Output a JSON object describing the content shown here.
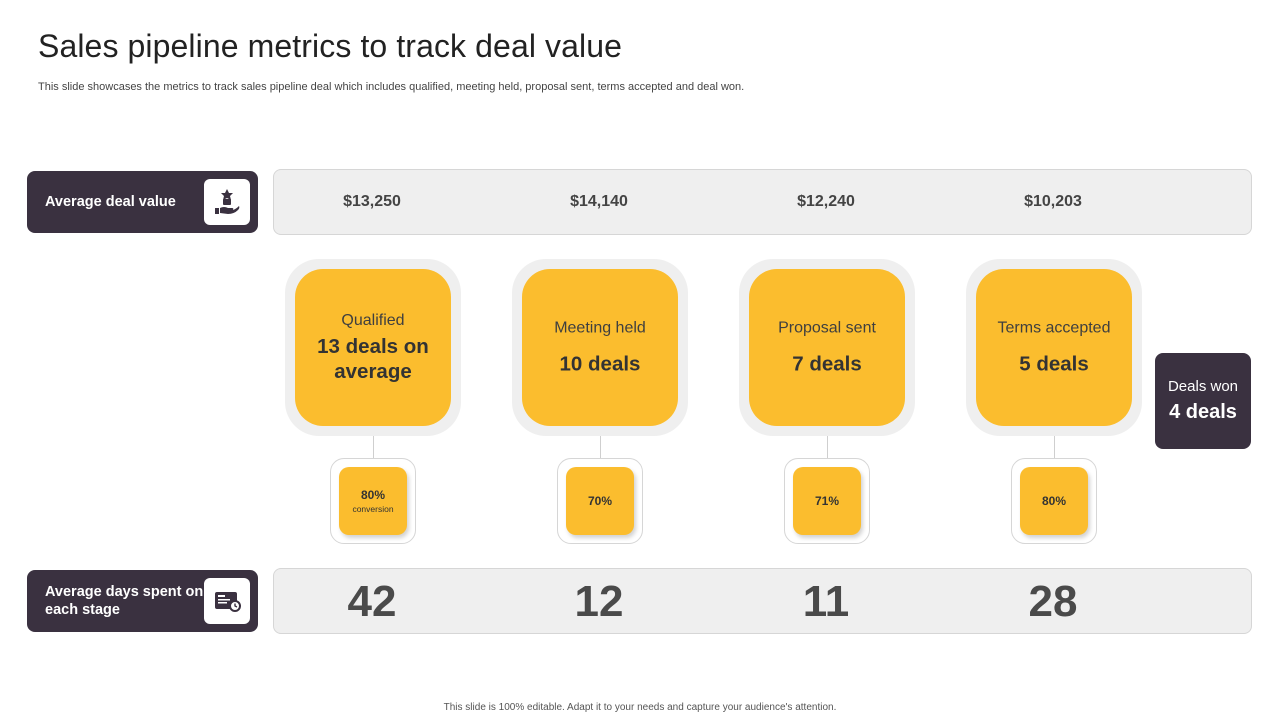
{
  "header": {
    "title": "Sales pipeline metrics to track deal value",
    "subtitle": "This slide showcases the metrics to track sales pipeline deal which includes qualified, meeting held, proposal sent, terms accepted and deal won."
  },
  "deal_value_row": {
    "label": "Average deal value",
    "icon": "money-hand-icon",
    "values": [
      "$13,250",
      "$14,140",
      "$12,240",
      "$10,203"
    ]
  },
  "stages": [
    {
      "name": "Qualified",
      "deals": "13 deals on average",
      "conversion": "80%",
      "conversion_note": "conversion"
    },
    {
      "name": "Meeting held",
      "deals": "10 deals",
      "conversion": "70%",
      "conversion_note": ""
    },
    {
      "name": "Proposal sent",
      "deals": "7 deals",
      "conversion": "71%",
      "conversion_note": ""
    },
    {
      "name": "Terms accepted",
      "deals": "5 deals",
      "conversion": "80%",
      "conversion_note": ""
    }
  ],
  "deals_won": {
    "name": "Deals won",
    "deals": "4 deals"
  },
  "days_row": {
    "label": "Average days spent on each stage",
    "icon": "calendar-card-icon",
    "values": [
      "42",
      "12",
      "11",
      "28"
    ]
  },
  "footer": "This slide is 100% editable. Adapt it to your needs and capture your audience's attention.",
  "colors": {
    "accent": "#fbbd2e",
    "dark": "#3a3140",
    "band": "#efefef"
  }
}
